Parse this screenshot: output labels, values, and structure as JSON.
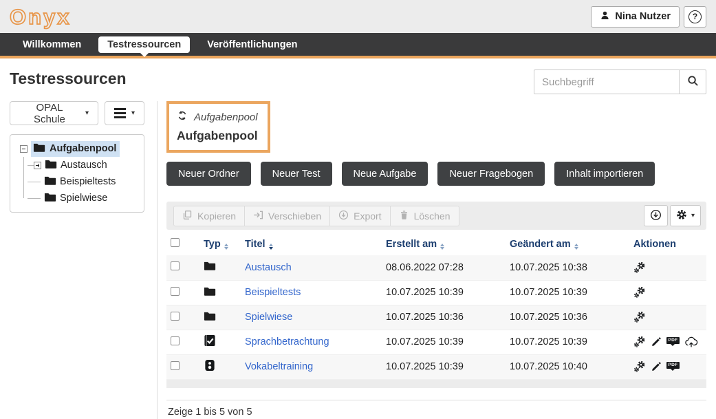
{
  "brand": {
    "logo_text": "Onyx"
  },
  "header": {
    "user_button": "Nina Nutzer",
    "help_label": "?"
  },
  "nav": {
    "items": [
      {
        "label": "Willkommen",
        "active": false
      },
      {
        "label": "Testressourcen",
        "active": true
      },
      {
        "label": "Veröffentlichungen",
        "active": false
      }
    ]
  },
  "page": {
    "title": "Testressourcen"
  },
  "search": {
    "placeholder": "Suchbegriff"
  },
  "sidebar": {
    "repo_select_label": "OPAL Schule",
    "tree": [
      {
        "label": "Aufgabenpool",
        "expander": "minus",
        "selected": true,
        "level": 0
      },
      {
        "label": "Austausch",
        "expander": "plus",
        "selected": false,
        "level": 1
      },
      {
        "label": "Beispieltests",
        "expander": "none",
        "selected": false,
        "level": 1
      },
      {
        "label": "Spielwiese",
        "expander": "none",
        "selected": false,
        "level": 1
      }
    ]
  },
  "main": {
    "breadcrumb": "Aufgabenpool",
    "heading": "Aufgabenpool",
    "create_buttons": [
      "Neuer Ordner",
      "Neuer Test",
      "Neue Aufgabe",
      "Neuer Fragebogen",
      "Inhalt importieren"
    ],
    "toolbar": {
      "copy": "Kopieren",
      "move": "Verschieben",
      "export": "Export",
      "delete": "Löschen"
    },
    "table": {
      "columns": [
        "Typ",
        "Titel",
        "Erstellt am",
        "Geändert am",
        "Aktionen"
      ],
      "sorted_column": "Titel",
      "rows": [
        {
          "type": "folder",
          "title": "Austausch",
          "created": "08.06.2022 07:28",
          "modified": "10.07.2025 10:38",
          "actions": [
            "settings"
          ]
        },
        {
          "type": "folder",
          "title": "Beispieltests",
          "created": "10.07.2025 10:39",
          "modified": "10.07.2025 10:39",
          "actions": [
            "settings"
          ]
        },
        {
          "type": "folder",
          "title": "Spielwiese",
          "created": "10.07.2025 10:36",
          "modified": "10.07.2025 10:36",
          "actions": [
            "settings"
          ]
        },
        {
          "type": "test",
          "title": "Sprachbetrachtung",
          "created": "10.07.2025 10:39",
          "modified": "10.07.2025 10:39",
          "actions": [
            "settings",
            "edit",
            "pdf",
            "publish"
          ]
        },
        {
          "type": "questionnaire",
          "title": "Vokabeltraining",
          "created": "10.07.2025 10:39",
          "modified": "10.07.2025 10:40",
          "actions": [
            "settings",
            "edit",
            "pdf"
          ]
        }
      ],
      "summary": "Zeige 1 bis 5 von 5"
    }
  },
  "icons": {
    "user": "person-silhouette",
    "help": "question-mark-circle",
    "search": "magnifier",
    "refresh": "circular-arrows",
    "menu": "hamburger",
    "caret": "▾",
    "copy": "overlapping-pages",
    "move": "arrow-into-bracket",
    "export": "circle-down-arrow",
    "delete": "trash-can",
    "download": "circle-down-arrow",
    "table-settings": "gear",
    "settings": "double-gear",
    "edit": "pencil",
    "pdf": "pdf-tag",
    "publish": "cloud-up-arrow",
    "folder": "black-folder",
    "test": "checked-square",
    "questionnaire": "two-dots-card"
  },
  "colors": {
    "accent_orange": "#E9A35B",
    "nav_dark": "#3A3A3B",
    "link_blue": "#3366CC",
    "table_header_navy": "#1C3E6F",
    "dark_button": "#3F4143",
    "selected_tree": "#CFE1F3"
  }
}
